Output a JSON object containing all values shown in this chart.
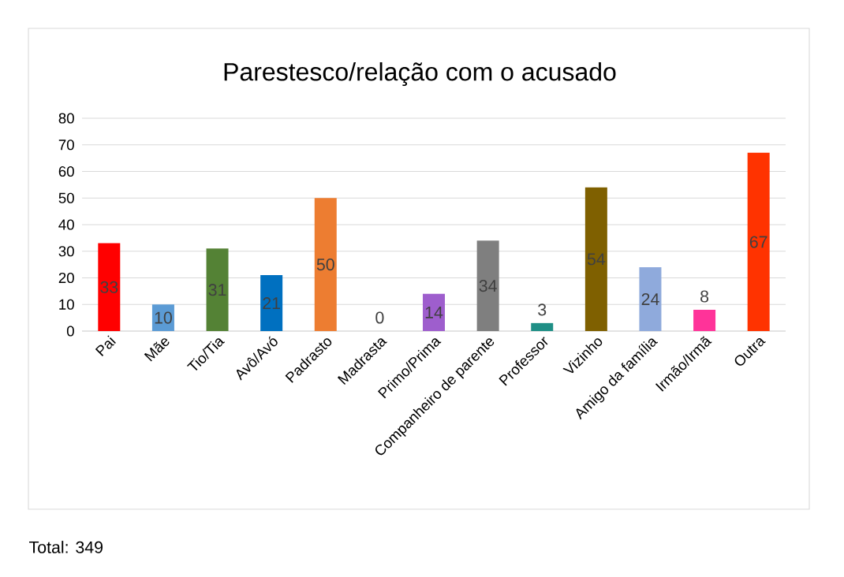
{
  "chart_data": {
    "type": "bar",
    "title": "Parestesco/relação com o acusado",
    "categories": [
      "Pai",
      "Mãe",
      "Tio/Tia",
      "Avô/Avó",
      "Padrasto",
      "Madrasta",
      "Primo/Prima",
      "Companheiro de parente",
      "Professor",
      "Vizinho",
      "Amigo da família",
      "Irmão/Irmã",
      "Outra"
    ],
    "values": [
      33,
      10,
      31,
      21,
      50,
      0,
      14,
      34,
      3,
      54,
      24,
      8,
      67
    ],
    "colors": [
      "#ff0000",
      "#5b9bd5",
      "#548235",
      "#0070c0",
      "#ed7d31",
      "#ffc000",
      "#9e5ecd",
      "#7f7f7f",
      "#1f8f86",
      "#7f6000",
      "#8faadc",
      "#ff3399",
      "#ff3300"
    ],
    "ylim": [
      0,
      80
    ],
    "yticks": [
      0,
      10,
      20,
      30,
      40,
      50,
      60,
      70,
      80
    ],
    "grid": "y",
    "data_labels": true,
    "annotations": [
      "Total: 349"
    ]
  }
}
